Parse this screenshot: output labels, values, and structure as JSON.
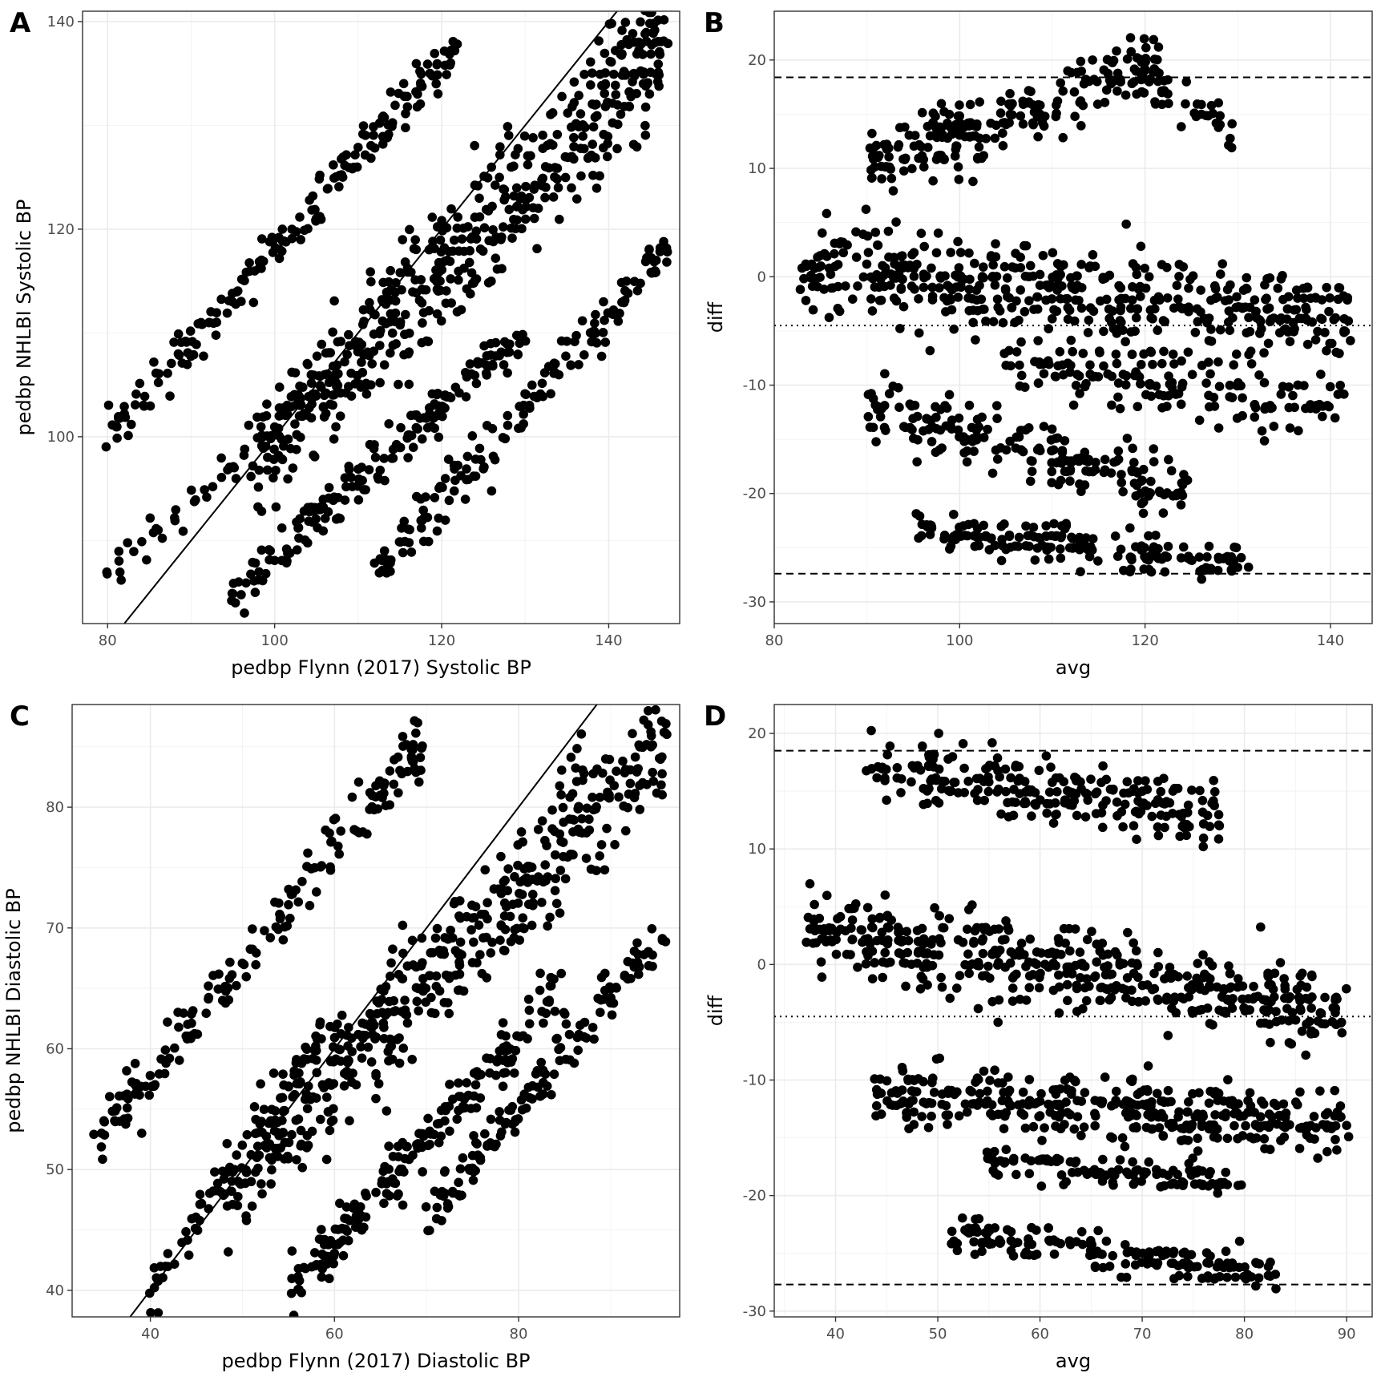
{
  "chart_data": [
    {
      "id": "A",
      "letter": "A",
      "type": "scatter",
      "xlabel": "pedbp Flynn (2017) Systolic BP",
      "ylabel": "pedbp NHLBI Systolic BP",
      "xlim": [
        77,
        148.5
      ],
      "ylim": [
        82,
        141
      ],
      "xticks": [
        80,
        100,
        120,
        140
      ],
      "yticks": [
        100,
        120,
        140
      ],
      "identity_line": true,
      "clusters": [
        {
          "x0": 80,
          "x1": 122,
          "y0": 100,
          "y1": 138,
          "n": 190,
          "noise": 2.2
        },
        {
          "x0": 80,
          "x1": 108,
          "y0": 86,
          "y1": 108,
          "n": 60,
          "noise": 1.8
        },
        {
          "x0": 98,
          "x1": 147,
          "y0": 98,
          "y1": 138,
          "n": 520,
          "noise": 5.5
        },
        {
          "x0": 95,
          "x1": 130,
          "y0": 85,
          "y1": 110,
          "n": 180,
          "noise": 2.0
        },
        {
          "x0": 112,
          "x1": 147,
          "y0": 87,
          "y1": 118,
          "n": 160,
          "noise": 2.2
        }
      ]
    },
    {
      "id": "B",
      "letter": "B",
      "type": "scatter",
      "xlabel": "avg",
      "ylabel": "diff",
      "xlim": [
        80,
        144.5
      ],
      "ylim": [
        -32,
        24.5
      ],
      "xticks": [
        80,
        100,
        120,
        140
      ],
      "yticks": [
        -30,
        -20,
        -10,
        0,
        10,
        20
      ],
      "hlines": [
        {
          "y": 18.4,
          "style": "dashed"
        },
        {
          "y": -4.5,
          "style": "dotted"
        },
        {
          "y": -27.4,
          "style": "dashed"
        }
      ],
      "clusters": [
        {
          "x0": 90,
          "x1": 122,
          "y0": 10,
          "y1": 20,
          "n": 230,
          "noise": 2.6
        },
        {
          "x0": 118,
          "x1": 130,
          "y0": 19,
          "y1": 13,
          "n": 40,
          "noise": 1.5
        },
        {
          "x0": 83,
          "x1": 142,
          "y0": 1,
          "y1": -4,
          "n": 480,
          "noise": 3.5
        },
        {
          "x0": 105,
          "x1": 142,
          "y0": -8,
          "y1": -12,
          "n": 160,
          "noise": 2.5
        },
        {
          "x0": 90,
          "x1": 125,
          "y0": -12,
          "y1": -20,
          "n": 200,
          "noise": 2.4
        },
        {
          "x0": 95,
          "x1": 132,
          "y0": -23,
          "y1": -27,
          "n": 180,
          "noise": 1.5
        }
      ]
    },
    {
      "id": "C",
      "letter": "C",
      "type": "scatter",
      "xlabel": "pedbp Flynn (2017) Diastolic BP",
      "ylabel": "pedbp NHLBI Diastolic BP",
      "xlim": [
        31.5,
        97.5
      ],
      "ylim": [
        37.8,
        88.5
      ],
      "xticks": [
        40,
        60,
        80
      ],
      "yticks": [
        40,
        50,
        60,
        70,
        80
      ],
      "identity_line": true,
      "clusters": [
        {
          "x0": 34,
          "x1": 70,
          "y0": 52,
          "y1": 86,
          "n": 180,
          "noise": 2.2
        },
        {
          "x0": 40,
          "x1": 60,
          "y0": 40,
          "y1": 62,
          "n": 80,
          "noise": 1.6
        },
        {
          "x0": 48,
          "x1": 96,
          "y0": 48,
          "y1": 86,
          "n": 480,
          "noise": 4.6
        },
        {
          "x0": 55,
          "x1": 85,
          "y0": 40,
          "y1": 65,
          "n": 200,
          "noise": 2.0
        },
        {
          "x0": 70,
          "x1": 96,
          "y0": 46,
          "y1": 70,
          "n": 150,
          "noise": 1.8
        }
      ]
    },
    {
      "id": "D",
      "letter": "D",
      "type": "scatter",
      "xlabel": "avg",
      "ylabel": "diff",
      "xlim": [
        34,
        92.5
      ],
      "ylim": [
        -30.5,
        22.5
      ],
      "xticks": [
        40,
        50,
        60,
        70,
        80,
        90
      ],
      "yticks": [
        -30,
        -20,
        -10,
        0,
        10,
        20
      ],
      "hlines": [
        {
          "y": 18.5,
          "style": "dashed"
        },
        {
          "y": -4.5,
          "style": "dotted"
        },
        {
          "y": -27.7,
          "style": "dashed"
        }
      ],
      "clusters": [
        {
          "x0": 43,
          "x1": 78,
          "y0": 17,
          "y1": 13,
          "n": 240,
          "noise": 2.2
        },
        {
          "x0": 37,
          "x1": 90,
          "y0": 3,
          "y1": -4,
          "n": 480,
          "noise": 3.0
        },
        {
          "x0": 44,
          "x1": 90,
          "y0": -11,
          "y1": -14,
          "n": 380,
          "noise": 2.3
        },
        {
          "x0": 55,
          "x1": 80,
          "y0": -17,
          "y1": -19,
          "n": 120,
          "noise": 1.0
        },
        {
          "x0": 51,
          "x1": 83,
          "y0": -23,
          "y1": -27,
          "n": 170,
          "noise": 1.3
        }
      ]
    }
  ]
}
